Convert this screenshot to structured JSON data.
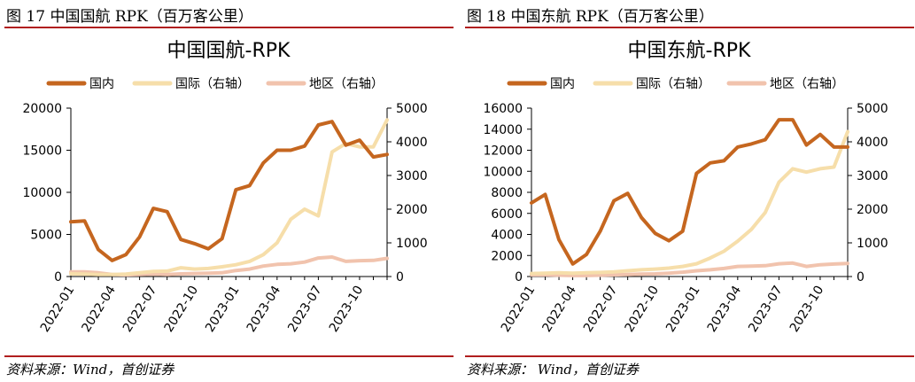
{
  "colors": {
    "domestic": "#c5661f",
    "international": "#f6deaa",
    "regional": "#f1c3ad",
    "rule": "#b01e1e",
    "axis": "#000000"
  },
  "chart_data": [
    {
      "type": "line",
      "figure_label": "图 17 中国国航 RPK（百万客公里）",
      "title": "中国国航-RPK",
      "source": "资料来源：Wind，首创证券",
      "x": [
        "2022-01",
        "2022-02",
        "2022-03",
        "2022-04",
        "2022-05",
        "2022-06",
        "2022-07",
        "2022-08",
        "2022-09",
        "2022-10",
        "2022-11",
        "2022-12",
        "2023-01",
        "2023-02",
        "2023-03",
        "2023-04",
        "2023-05",
        "2023-06",
        "2023-07",
        "2023-08",
        "2023-09",
        "2023-10",
        "2023-11",
        "2023-12"
      ],
      "x_tick_labels": [
        "2022-01",
        "2022-04",
        "2022-07",
        "2022-10",
        "2023-01",
        "2023-04",
        "2023-07",
        "2023-10"
      ],
      "y_left": {
        "min": 0,
        "max": 20000,
        "ticks": [
          "0",
          "5000",
          "10000",
          "15000",
          "20000"
        ]
      },
      "y_right": {
        "min": 0,
        "max": 5000,
        "ticks": [
          "0",
          "1000",
          "2000",
          "3000",
          "4000",
          "5000"
        ]
      },
      "legend": "top",
      "series": [
        {
          "name": "国内",
          "axis": "left",
          "color_key": "domestic",
          "values": [
            6500,
            6600,
            3200,
            1900,
            2600,
            4700,
            8100,
            7700,
            4400,
            3900,
            3300,
            4500,
            10300,
            10800,
            13500,
            15000,
            15000,
            15500,
            18000,
            18400,
            15600,
            16200,
            14200,
            14500
          ]
        },
        {
          "name": "国际（右轴）",
          "axis": "right",
          "color_key": "international",
          "values": [
            80,
            70,
            60,
            60,
            70,
            110,
            150,
            160,
            260,
            220,
            240,
            290,
            350,
            450,
            650,
            1000,
            1700,
            2000,
            1800,
            3700,
            3950,
            3850,
            3850,
            4650
          ]
        },
        {
          "name": "地区（右轴）",
          "axis": "right",
          "color_key": "regional",
          "values": [
            140,
            140,
            110,
            60,
            50,
            60,
            70,
            60,
            80,
            90,
            100,
            110,
            180,
            220,
            310,
            360,
            380,
            430,
            550,
            580,
            450,
            470,
            480,
            540
          ]
        }
      ]
    },
    {
      "type": "line",
      "figure_label": "图 18 中国东航 RPK（百万客公里）",
      "title": "中国东航-RPK",
      "source": "资料来源：   Wind，首创证券",
      "x": [
        "2022-01",
        "2022-02",
        "2022-03",
        "2022-04",
        "2022-05",
        "2022-06",
        "2022-07",
        "2022-08",
        "2022-09",
        "2022-10",
        "2022-11",
        "2022-12",
        "2023-01",
        "2023-02",
        "2023-03",
        "2023-04",
        "2023-05",
        "2023-06",
        "2023-07",
        "2023-08",
        "2023-09",
        "2023-10",
        "2023-11",
        "2023-12"
      ],
      "x_tick_labels": [
        "2022-01",
        "2022-04",
        "2022-07",
        "2022-10",
        "2023-01",
        "2023-04",
        "2023-07",
        "2023-10"
      ],
      "y_left": {
        "min": 0,
        "max": 16000,
        "ticks": [
          "0",
          "2000",
          "4000",
          "6000",
          "8000",
          "10000",
          "12000",
          "14000",
          "16000"
        ]
      },
      "y_right": {
        "min": 0,
        "max": 5000,
        "ticks": [
          "0",
          "1000",
          "2000",
          "3000",
          "4000",
          "5000"
        ]
      },
      "legend": "top",
      "series": [
        {
          "name": "国内",
          "axis": "left",
          "color_key": "domestic",
          "values": [
            7000,
            7800,
            3500,
            1200,
            2100,
            4300,
            7200,
            7900,
            5600,
            4100,
            3400,
            4300,
            9800,
            10800,
            11000,
            12300,
            12600,
            13000,
            14900,
            14900,
            12500,
            13500,
            12300,
            12300
          ]
        },
        {
          "name": "国际（右轴）",
          "axis": "right",
          "color_key": "international",
          "values": [
            90,
            100,
            110,
            100,
            110,
            120,
            140,
            170,
            200,
            220,
            250,
            300,
            380,
            550,
            750,
            1050,
            1400,
            1900,
            2800,
            3200,
            3100,
            3200,
            3250,
            4300
          ]
        },
        {
          "name": "地区（右轴）",
          "axis": "right",
          "color_key": "regional",
          "values": [
            50,
            50,
            40,
            30,
            30,
            40,
            50,
            60,
            70,
            80,
            100,
            130,
            170,
            200,
            240,
            300,
            310,
            320,
            380,
            400,
            300,
            350,
            370,
            390
          ]
        }
      ]
    }
  ]
}
